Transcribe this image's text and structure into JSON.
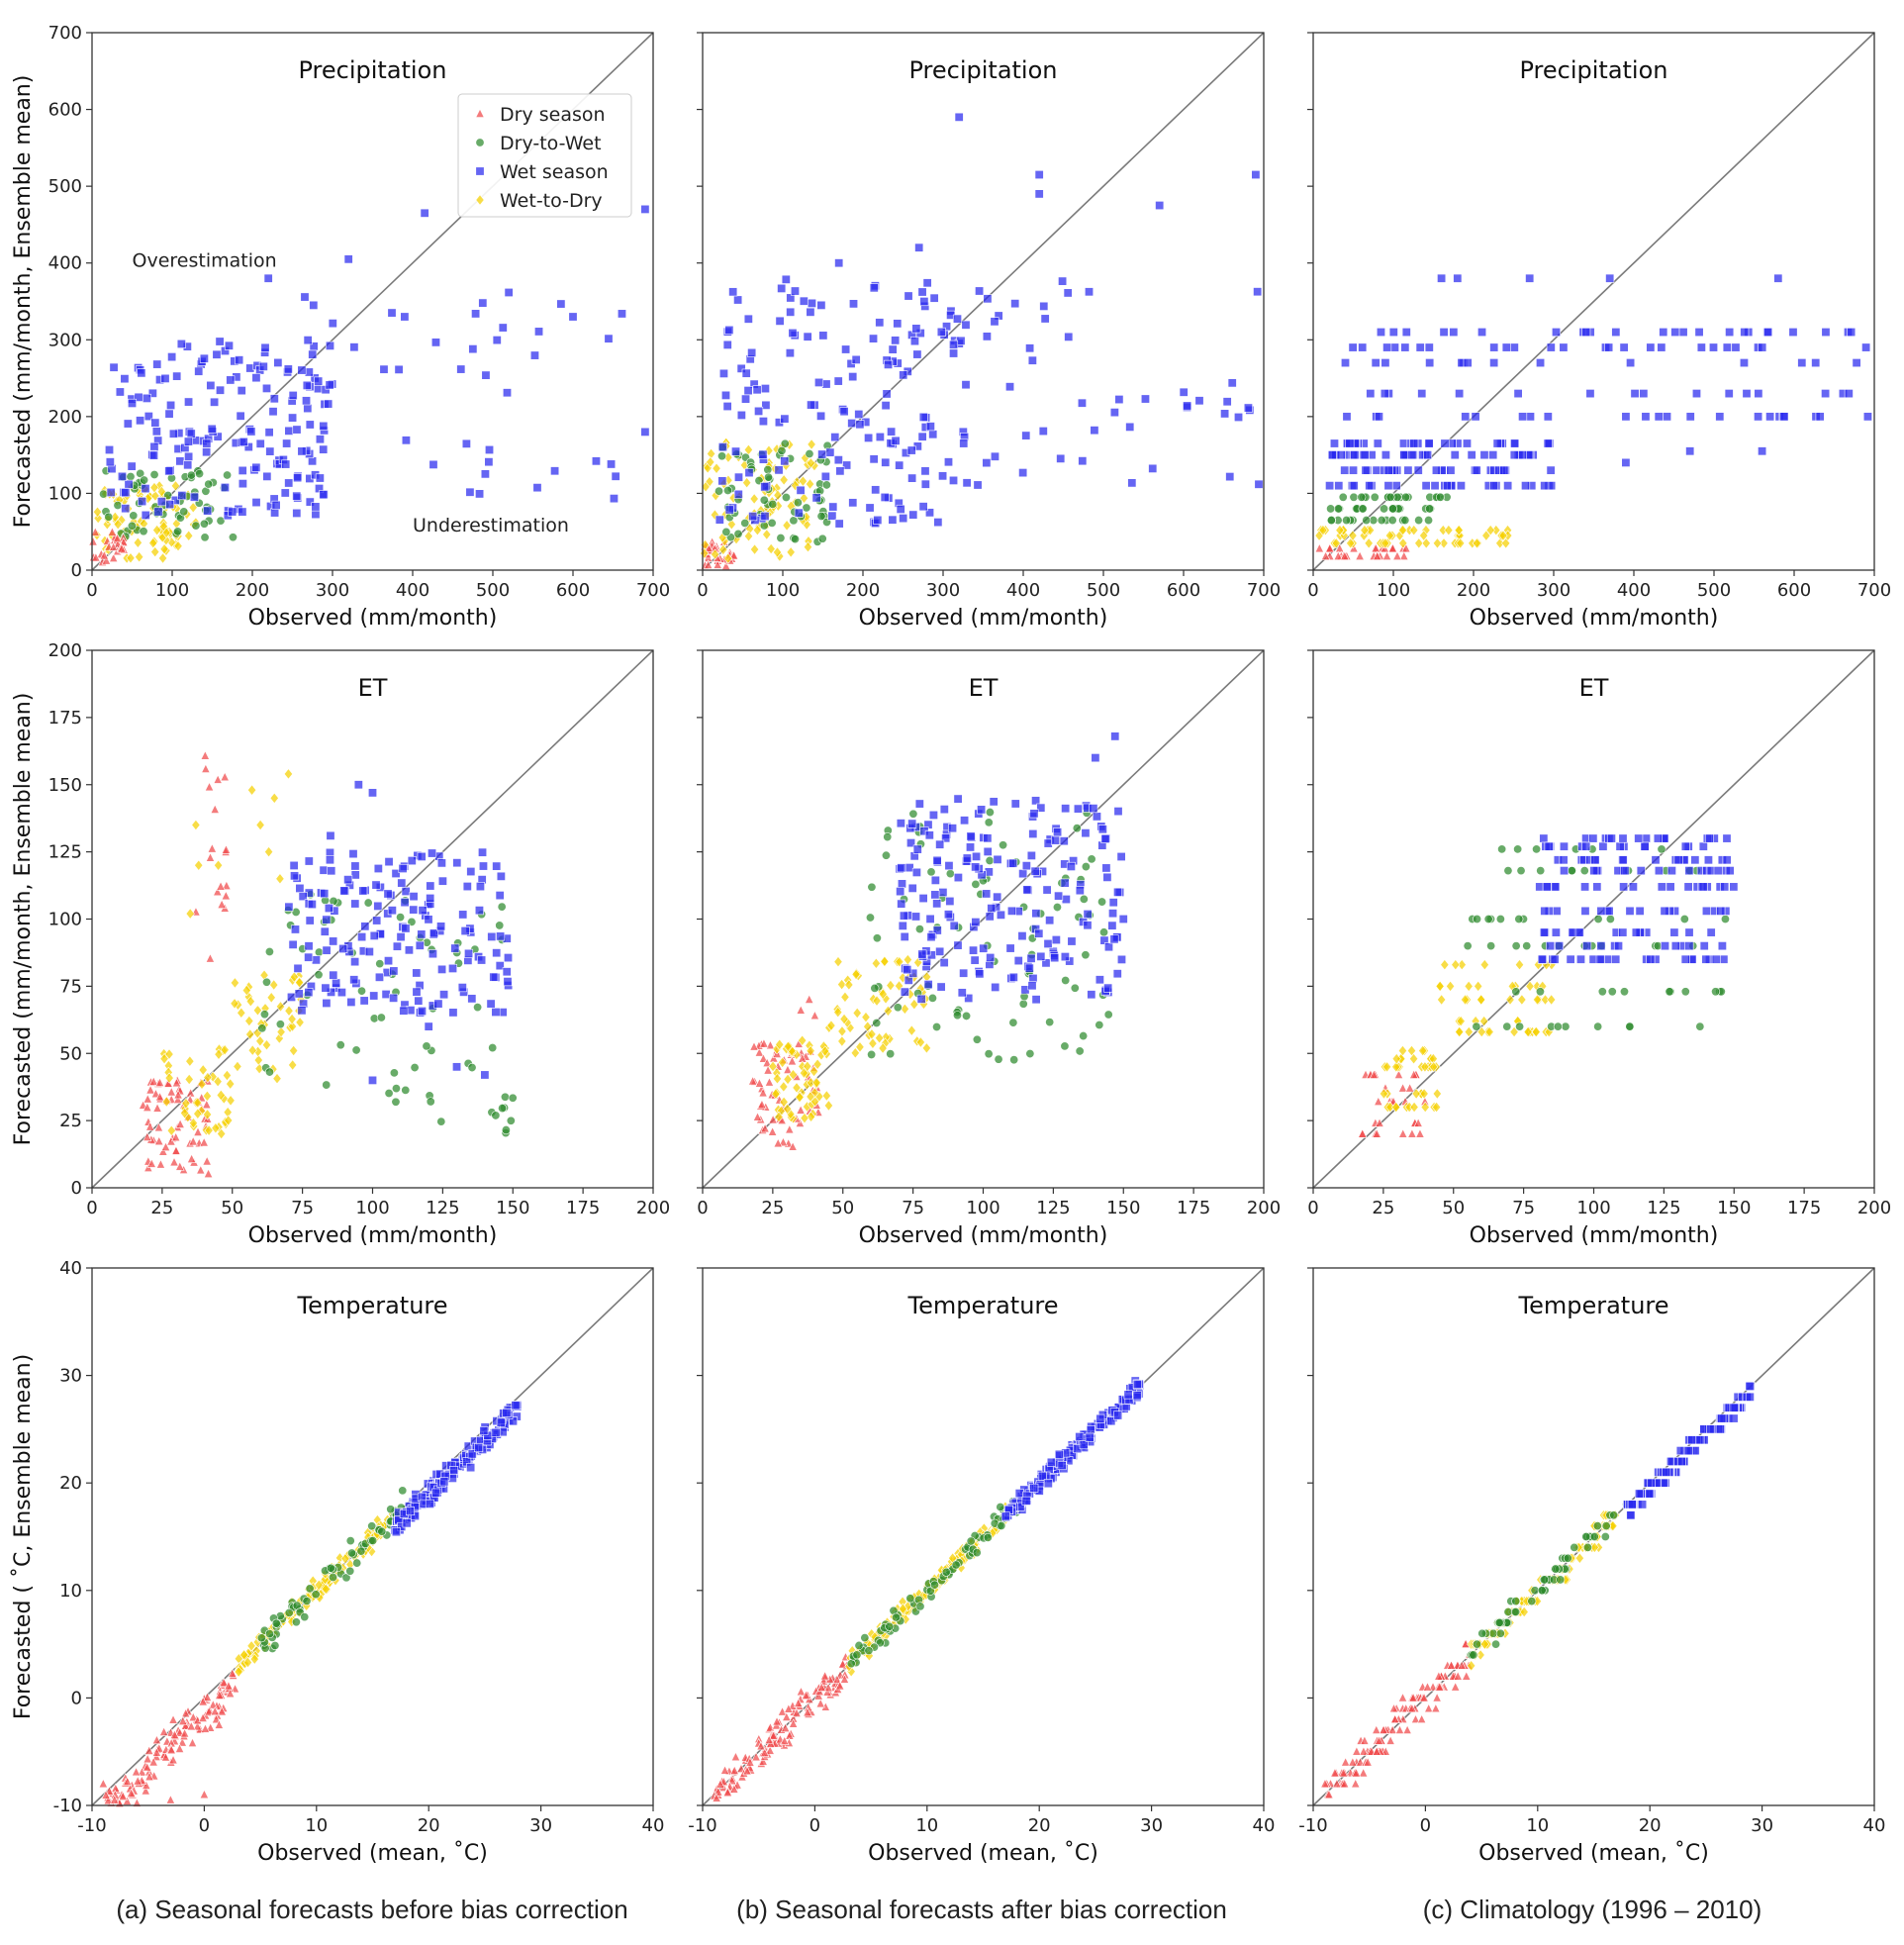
{
  "figure": {
    "captions": [
      "(a) Seasonal forecasts before bias correction",
      "(b) Seasonal forecasts after bias correction",
      "(c) Climatology (1996 – 2010)"
    ],
    "legend": [
      {
        "key": "dry",
        "label": "Dry season",
        "color": "#f0484a",
        "marker": "triangle"
      },
      {
        "key": "d2w",
        "label": "Dry-to-Wet",
        "color": "#2e8b2e",
        "marker": "circle"
      },
      {
        "key": "wet",
        "label": "Wet season",
        "color": "#2a2aee",
        "marker": "square"
      },
      {
        "key": "w2d",
        "label": "Wet-to-Dry",
        "color": "#f5d000",
        "marker": "diamond"
      }
    ],
    "annotations": {
      "over": "Overestimation",
      "under": "Underestimation"
    }
  },
  "chart_data": [
    {
      "id": "precip",
      "type": "scatter",
      "title": "Precipitation",
      "xlabel": "Observed (mm/month)",
      "ylabel": "Forecasted (mm/month, Ensemble mean)",
      "xlim": [
        0,
        700
      ],
      "ylim": [
        0,
        700
      ],
      "xticks": [
        "0",
        "100",
        "200",
        "300",
        "400",
        "500",
        "600",
        "700"
      ],
      "yticks": [
        "0",
        "100",
        "200",
        "300",
        "400",
        "500",
        "600",
        "700"
      ],
      "tick_values": [
        0,
        100,
        200,
        300,
        400,
        500,
        600,
        700
      ],
      "clusters": {
        "a": [
          {
            "s": "w2d",
            "n": 90,
            "x": [
              5,
              130
            ],
            "y": [
              15,
              110
            ]
          },
          {
            "s": "d2w",
            "n": 60,
            "x": [
              10,
              180
            ],
            "y": [
              40,
              130
            ]
          },
          {
            "s": "dry",
            "n": 25,
            "x": [
              0,
              40
            ],
            "y": [
              10,
              50
            ]
          },
          {
            "s": "wet",
            "n": 170,
            "x": [
              20,
              300
            ],
            "y": [
              70,
              300
            ]
          },
          {
            "s": "wet",
            "n": 45,
            "x": [
              250,
              700
            ],
            "y": [
              90,
              380
            ]
          },
          {
            "s": "wet",
            "pts": [
              [
                320,
                405
              ],
              [
                415,
                465
              ],
              [
                220,
                380
              ],
              [
                690,
                470
              ],
              [
                390,
                330
              ],
              [
                600,
                330
              ],
              [
                690,
                180
              ]
            ]
          }
        ],
        "b": [
          {
            "s": "dry",
            "n": 30,
            "x": [
              0,
              40
            ],
            "y": [
              5,
              40
            ]
          },
          {
            "s": "w2d",
            "n": 90,
            "x": [
              0,
              140
            ],
            "y": [
              15,
              170
            ]
          },
          {
            "s": "d2w",
            "n": 60,
            "x": [
              20,
              160
            ],
            "y": [
              30,
              170
            ]
          },
          {
            "s": "wet",
            "n": 170,
            "x": [
              20,
              330
            ],
            "y": [
              60,
              380
            ]
          },
          {
            "s": "wet",
            "n": 45,
            "x": [
              300,
              700
            ],
            "y": [
              110,
              400
            ]
          },
          {
            "s": "wet",
            "pts": [
              [
                320,
                590
              ],
              [
                420,
                515
              ],
              [
                420,
                490
              ],
              [
                570,
                475
              ],
              [
                690,
                515
              ],
              [
                270,
                420
              ],
              [
                170,
                400
              ]
            ]
          }
        ],
        "c": [
          {
            "s": "dry",
            "n": 30,
            "x": [
              0,
              120
            ],
            "y": [
              15,
              30
            ],
            "levels": [
              18,
              28
            ]
          },
          {
            "s": "w2d",
            "n": 60,
            "x": [
              0,
              250
            ],
            "y": [
              30,
              60
            ],
            "levels": [
              35,
              45,
              52
            ]
          },
          {
            "s": "d2w",
            "n": 55,
            "x": [
              20,
              170
            ],
            "y": [
              60,
              100
            ],
            "levels": [
              65,
              80,
              95
            ]
          },
          {
            "s": "wet",
            "n": 110,
            "x": [
              20,
              300
            ],
            "y": [
              100,
              170
            ],
            "levels": [
              110,
              130,
              150,
              165
            ]
          },
          {
            "s": "wet",
            "n": 100,
            "x": [
              40,
              700
            ],
            "y": [
              190,
              320
            ],
            "levels": [
              200,
              230,
              270,
              290,
              310
            ]
          },
          {
            "s": "wet",
            "pts": [
              [
                160,
                380
              ],
              [
                180,
                380
              ],
              [
                270,
                380
              ],
              [
                370,
                380
              ],
              [
                580,
                380
              ],
              [
                470,
                155
              ],
              [
                560,
                155
              ],
              [
                390,
                140
              ]
            ]
          }
        ]
      }
    },
    {
      "id": "et",
      "type": "scatter",
      "title": "ET",
      "xlabel": "Observed (mm/month)",
      "ylabel": "Forecasted (mm/month, Ensemble mean)",
      "xlim": [
        0,
        200
      ],
      "ylim": [
        0,
        200
      ],
      "xticks": [
        "0",
        "25",
        "50",
        "75",
        "100",
        "125",
        "150",
        "175",
        "200"
      ],
      "yticks": [
        "0",
        "25",
        "50",
        "75",
        "100",
        "125",
        "150",
        "175",
        "200"
      ],
      "tick_values": [
        0,
        25,
        50,
        75,
        100,
        125,
        150,
        175,
        200
      ],
      "clusters": {
        "a": [
          {
            "s": "dry",
            "n": 70,
            "x": [
              18,
              42
            ],
            "y": [
              5,
              40
            ]
          },
          {
            "s": "dry",
            "n": 18,
            "x": [
              33,
              48
            ],
            "y": [
              85,
              165
            ]
          },
          {
            "s": "w2d",
            "n": 45,
            "x": [
              25,
              50
            ],
            "y": [
              18,
              55
            ]
          },
          {
            "s": "w2d",
            "n": 45,
            "x": [
              50,
              75
            ],
            "y": [
              40,
              80
            ]
          },
          {
            "s": "w2d",
            "pts": [
              [
                57,
                148
              ],
              [
                65,
                145
              ],
              [
                70,
                154
              ],
              [
                60,
                135
              ],
              [
                63,
                125
              ],
              [
                67,
                115
              ],
              [
                37,
                135
              ],
              [
                38,
                120
              ],
              [
                45,
                120
              ],
              [
                35,
                102
              ]
            ]
          },
          {
            "s": "d2w",
            "n": 70,
            "x": [
              60,
              150
            ],
            "y": [
              20,
              110
            ]
          },
          {
            "s": "wet",
            "n": 170,
            "x": [
              70,
              150
            ],
            "y": [
              65,
              125
            ]
          },
          {
            "s": "wet",
            "pts": [
              [
                95,
                150
              ],
              [
                100,
                147
              ],
              [
                85,
                131
              ],
              [
                120,
                60
              ],
              [
                130,
                45
              ],
              [
                140,
                42
              ],
              [
                100,
                40
              ]
            ]
          }
        ],
        "b": [
          {
            "s": "dry",
            "n": 60,
            "x": [
              17,
              42
            ],
            "y": [
              15,
              55
            ]
          },
          {
            "s": "dry",
            "pts": [
              [
                38,
                70
              ],
              [
                35,
                66
              ],
              [
                40,
                64
              ]
            ]
          },
          {
            "s": "w2d",
            "n": 60,
            "x": [
              25,
              45
            ],
            "y": [
              25,
              55
            ]
          },
          {
            "s": "w2d",
            "n": 60,
            "x": [
              45,
              80
            ],
            "y": [
              50,
              85
            ]
          },
          {
            "s": "d2w",
            "n": 80,
            "x": [
              55,
              145
            ],
            "y": [
              45,
              140
            ]
          },
          {
            "s": "wet",
            "n": 200,
            "x": [
              70,
              150
            ],
            "y": [
              70,
              145
            ]
          },
          {
            "s": "wet",
            "pts": [
              [
                147,
                168
              ],
              [
                140,
                160
              ],
              [
                148,
                110
              ],
              [
                150,
                100
              ]
            ]
          }
        ],
        "c": [
          {
            "s": "dry",
            "n": 30,
            "x": [
              17,
              40
            ],
            "y": [
              18,
              42
            ],
            "levels": [
              20,
              24,
              32,
              37,
              42
            ]
          },
          {
            "s": "w2d",
            "n": 40,
            "x": [
              25,
              45
            ],
            "y": [
              28,
              52
            ],
            "levels": [
              30,
              35,
              45,
              48,
              51
            ]
          },
          {
            "s": "w2d",
            "n": 50,
            "x": [
              45,
              85
            ],
            "y": [
              50,
              80
            ],
            "levels": [
              58,
              62,
              70,
              75,
              83
            ]
          },
          {
            "s": "d2w",
            "n": 60,
            "x": [
              55,
              150
            ],
            "y": [
              50,
              130
            ],
            "levels": [
              60,
              73,
              90,
              100,
              118,
              126
            ]
          },
          {
            "s": "wet",
            "n": 150,
            "x": [
              80,
              150
            ],
            "y": [
              80,
              130
            ],
            "levels": [
              85,
              90,
              95,
              103,
              112,
              118,
              122,
              127,
              130
            ]
          }
        ]
      }
    },
    {
      "id": "temp",
      "type": "scatter",
      "title": "Temperature",
      "xlabel": "Observed (mean,  ˚C)",
      "ylabel": "Forecasted ( ˚C, Ensemble mean)",
      "xlim": [
        -10,
        40
      ],
      "ylim": [
        -10,
        40
      ],
      "xticks": [
        "-10",
        "0",
        "10",
        "20",
        "30",
        "40"
      ],
      "yticks": [
        "-10",
        "0",
        "10",
        "20",
        "30",
        "40"
      ],
      "tick_values": [
        -10,
        0,
        10,
        20,
        30,
        40
      ],
      "clusters": {
        "a": [
          {
            "s": "dry",
            "band": [
              -9,
              3
            ],
            "n": 120,
            "offset": -1.5,
            "spread": 3
          },
          {
            "s": "dry",
            "pts": [
              [
                -9,
                -8
              ],
              [
                -8,
                -9.5
              ],
              [
                -6,
                -9.8
              ],
              [
                -3,
                -9.5
              ],
              [
                0,
                -9
              ]
            ]
          },
          {
            "s": "w2d",
            "band": [
              3,
              17
            ],
            "n": 140,
            "offset": 0,
            "spread": 1.5
          },
          {
            "s": "d2w",
            "band": [
              5,
              18
            ],
            "n": 70,
            "offset": 0,
            "spread": 2
          },
          {
            "s": "wet",
            "band": [
              17,
              28
            ],
            "n": 160,
            "offset": -1,
            "spread": 1.5
          }
        ],
        "b": [
          {
            "s": "dry",
            "band": [
              -9,
              3
            ],
            "n": 120,
            "offset": 0,
            "spread": 2.5
          },
          {
            "s": "w2d",
            "band": [
              3,
              17
            ],
            "n": 140,
            "offset": 0,
            "spread": 1.3
          },
          {
            "s": "d2w",
            "band": [
              3,
              18
            ],
            "n": 70,
            "offset": 0,
            "spread": 1.5
          },
          {
            "s": "wet",
            "band": [
              17,
              29
            ],
            "n": 160,
            "offset": 0,
            "spread": 1.2
          }
        ],
        "c": [
          {
            "s": "dry",
            "band": [
              -9,
              4
            ],
            "n": 120,
            "offset": 0,
            "spread": 3,
            "step": 1
          },
          {
            "s": "w2d",
            "band": [
              4,
              17
            ],
            "n": 140,
            "offset": 0,
            "spread": 1.5,
            "step": 1
          },
          {
            "s": "d2w",
            "band": [
              4,
              18
            ],
            "n": 60,
            "offset": 0,
            "spread": 1.5,
            "step": 1
          },
          {
            "s": "wet",
            "band": [
              18,
              29
            ],
            "n": 150,
            "offset": -0.5,
            "spread": 1,
            "step": 1
          }
        ]
      }
    }
  ]
}
